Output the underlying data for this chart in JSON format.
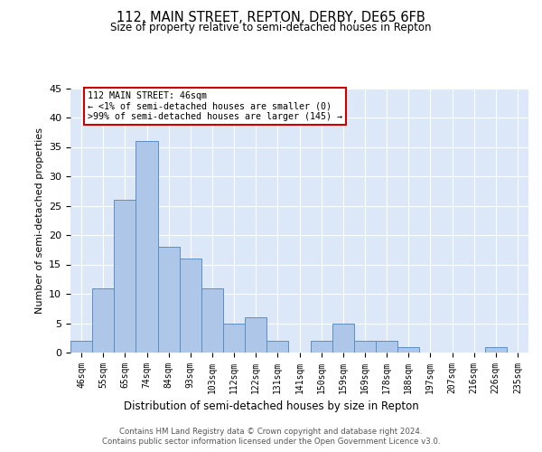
{
  "title": "112, MAIN STREET, REPTON, DERBY, DE65 6FB",
  "subtitle": "Size of property relative to semi-detached houses in Repton",
  "xlabel": "Distribution of semi-detached houses by size in Repton",
  "ylabel": "Number of semi-detached properties",
  "categories": [
    "46sqm",
    "55sqm",
    "65sqm",
    "74sqm",
    "84sqm",
    "93sqm",
    "103sqm",
    "112sqm",
    "122sqm",
    "131sqm",
    "141sqm",
    "150sqm",
    "159sqm",
    "169sqm",
    "178sqm",
    "188sqm",
    "197sqm",
    "207sqm",
    "216sqm",
    "226sqm",
    "235sqm"
  ],
  "values": [
    2,
    11,
    26,
    36,
    18,
    16,
    11,
    5,
    6,
    2,
    0,
    2,
    5,
    2,
    2,
    1,
    0,
    0,
    0,
    1,
    0
  ],
  "bar_color": "#aec6e8",
  "bar_edge_color": "#5a8fc2",
  "ylim": [
    0,
    45
  ],
  "yticks": [
    0,
    5,
    10,
    15,
    20,
    25,
    30,
    35,
    40,
    45
  ],
  "annotation_title": "112 MAIN STREET: 46sqm",
  "annotation_line1": "← <1% of semi-detached houses are smaller (0)",
  "annotation_line2": ">99% of semi-detached houses are larger (145) →",
  "annotation_box_color": "#ffffff",
  "annotation_box_edge": "#cc0000",
  "footer_line1": "Contains HM Land Registry data © Crown copyright and database right 2024.",
  "footer_line2": "Contains public sector information licensed under the Open Government Licence v3.0.",
  "bg_color": "#dce8f8",
  "fig_bg_color": "#ffffff"
}
